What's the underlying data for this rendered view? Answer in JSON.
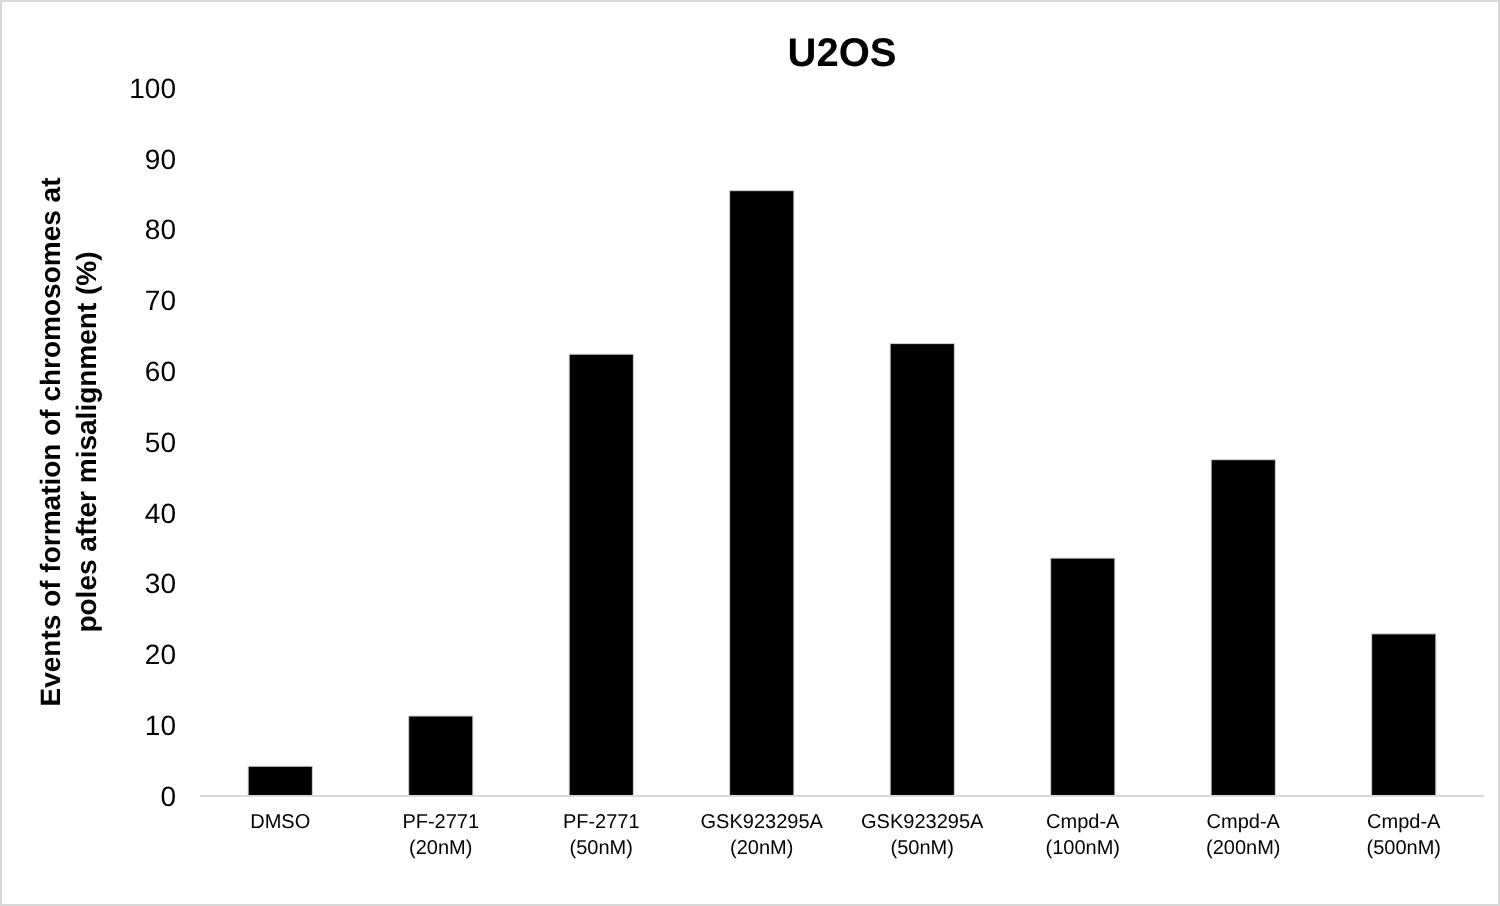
{
  "chart_data": {
    "type": "bar",
    "title": "U2OS",
    "ylabel": "Events of formation of chromosomes at poles after misalignment (%)",
    "categories": [
      "DMSO",
      "PF-2771 (20nM)",
      "PF-2771 (50nM)",
      "GSK923295A (20nM)",
      "GSK923295A (50nM)",
      "Cmpd-A (100nM)",
      "Cmpd-A (200nM)",
      "Cmpd-A (500nM)"
    ],
    "values": [
      4.2,
      11.3,
      62.4,
      85.5,
      63.9,
      33.6,
      47.5,
      22.9
    ],
    "color": "#000000",
    "ylim": [
      0,
      100
    ],
    "yticks": [
      0,
      10,
      20,
      30,
      40,
      50,
      60,
      70,
      80,
      90,
      100
    ],
    "grid": false
  }
}
